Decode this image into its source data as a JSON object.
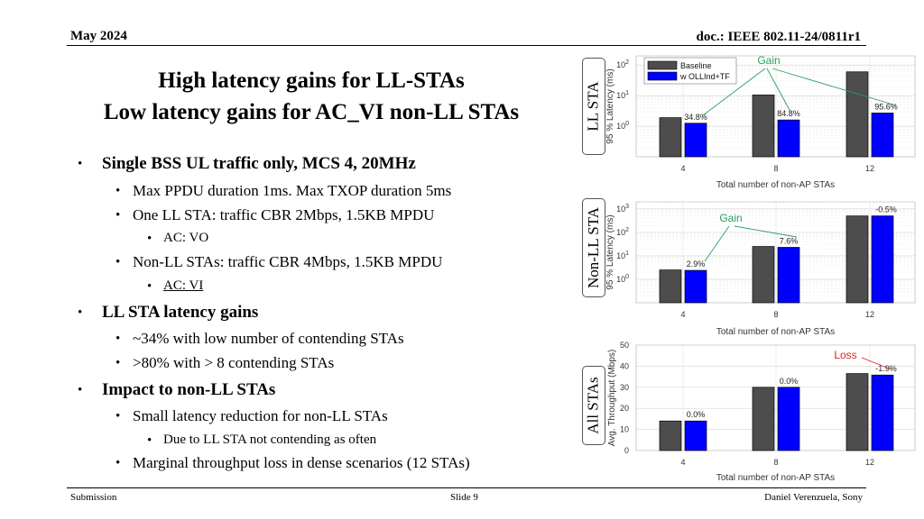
{
  "header": {
    "date": "May 2024",
    "doc": "doc.: IEEE 802.11-24/0811r1"
  },
  "title": {
    "line1": "High latency gains for LL-STAs",
    "line2": "Low latency gains for AC_VI non-LL STAs"
  },
  "bullets": [
    "Single BSS UL traffic only, MCS 4, 20MHz",
    "Max PPDU duration 1ms. Max TXOP duration 5ms",
    "One LL STA: traffic CBR 2Mbps, 1.5KB MPDU",
    "AC: VO",
    "Non-LL STAs: traffic CBR 4Mbps, 1.5KB MPDU",
    "AC: VI",
    "LL STA latency gains",
    "~34% with low number of contending STAs",
    ">80% with > 8 contending STAs",
    "Impact to non-LL STAs",
    "Small latency reduction for non-LL STAs",
    "Due to LL STA not contending as often",
    "Marginal throughput loss in dense scenarios (12 STAs)"
  ],
  "footer": {
    "left": "Submission",
    "center": "Slide 9",
    "right": "Daniel Verenzuela, Sony"
  },
  "colors": {
    "baseline": "#4d4d4d",
    "ollind": "#0000ff",
    "gain_annot": "#2e9e5e",
    "loss_annot": "#e02020"
  },
  "chart_data": [
    {
      "type": "bar",
      "side_label": "LL STA",
      "xlabel": "Total number of non-AP STAs",
      "ylabel": "95 % Latency (ms)",
      "yscale": "log",
      "ylim": [
        0.1,
        200
      ],
      "yticks": [
        "10^0",
        "10^1",
        "10^2"
      ],
      "categories": [
        "4",
        "8",
        "12"
      ],
      "series": [
        {
          "name": "Baseline",
          "values": [
            1.9,
            10.5,
            60
          ]
        },
        {
          "name": "w OLLInd+TF",
          "values": [
            1.25,
            1.6,
            2.7
          ]
        }
      ],
      "data_labels": [
        "34.8%",
        "84.8%",
        "95.6%"
      ],
      "annotation": "Gain",
      "legend": "top-left",
      "grid": true
    },
    {
      "type": "bar",
      "side_label": "Non-LL STA",
      "xlabel": "Total number of non-AP STAs",
      "ylabel": "95 % Latency (ms)",
      "yscale": "log",
      "ylim": [
        0.1,
        2000
      ],
      "yticks": [
        "10^0",
        "10^1",
        "10^2",
        "10^3"
      ],
      "categories": [
        "4",
        "8",
        "12"
      ],
      "series": [
        {
          "name": "Baseline",
          "values": [
            2.5,
            25,
            500
          ]
        },
        {
          "name": "w OLLInd+TF",
          "values": [
            2.4,
            23,
            502
          ]
        }
      ],
      "data_labels": [
        "2.9%",
        "7.6%",
        "-0.5%"
      ],
      "annotation": "Gain",
      "grid": true
    },
    {
      "type": "bar",
      "side_label": "All STAs",
      "xlabel": "Total number of non-AP STAs",
      "ylabel": "Avg. Throughput (Mbps)",
      "ylim": [
        0,
        50
      ],
      "yticks": [
        "0",
        "10",
        "20",
        "30",
        "40",
        "50"
      ],
      "categories": [
        "4",
        "8",
        "12"
      ],
      "series": [
        {
          "name": "Baseline",
          "values": [
            14,
            30,
            36.5
          ]
        },
        {
          "name": "w OLLInd+TF",
          "values": [
            14,
            30,
            35.8
          ]
        }
      ],
      "data_labels": [
        "0.0%",
        "0.0%",
        "-1.9%"
      ],
      "annotation": "Loss",
      "grid": true
    }
  ]
}
